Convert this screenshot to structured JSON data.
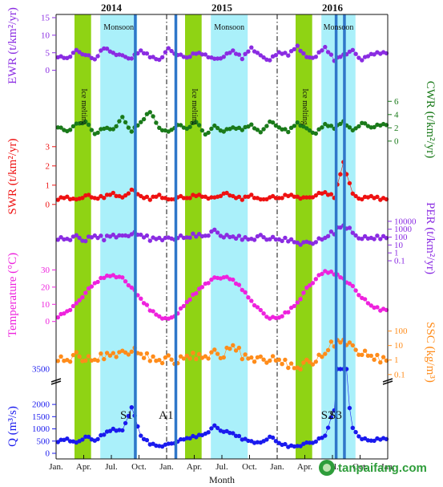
{
  "watermark": "tanpaifang.com",
  "chart_data": {
    "type": "line",
    "xlabel": "Month",
    "x_ticks": [
      "Jan.",
      "Apr.",
      "Jul.",
      "Oct.",
      "Jan.",
      "Apr.",
      "Jul.",
      "Oct.",
      "Jan.",
      "Apr.",
      "Jul.",
      "Oct.",
      "Jan."
    ],
    "year_labels": [
      "2014",
      "2015",
      "2016"
    ],
    "x_range": [
      0,
      36
    ],
    "regions": {
      "ice_melting": {
        "label": "Ice melting",
        "color": "#8fd314",
        "spans": [
          [
            2.0,
            3.8
          ],
          [
            14.0,
            15.8
          ],
          [
            26.0,
            27.8
          ]
        ]
      },
      "monsoon": {
        "label": "Monsoon",
        "color": "#aaf0fa",
        "spans": [
          [
            4.8,
            8.8
          ],
          [
            16.8,
            20.8
          ],
          [
            28.8,
            32.5
          ]
        ]
      }
    },
    "storm_events": [
      {
        "label": "S1",
        "x": 8.6
      },
      {
        "label": "A1",
        "x": 13.0
      },
      {
        "label": "S2",
        "x": 30.4
      },
      {
        "label": "S3",
        "x": 31.3
      }
    ],
    "storm_color": "#2f77c9",
    "panels": [
      {
        "id": "ewr",
        "ylabel": "EWR (t/km²/yr)",
        "axis": "left",
        "color": "#8a2be2",
        "scale": "linear",
        "ylim": [
          -1,
          15
        ],
        "yticks": [
          "0",
          "5",
          "10",
          "15"
        ],
        "values": [
          4.0,
          3.5,
          5.5,
          4.5,
          3.0,
          6.5,
          5.0,
          4.0,
          3.5,
          5.5,
          4.0,
          3.0,
          6.0,
          4.5,
          3.5,
          5.0,
          4.5,
          3.0,
          4.0,
          5.5,
          3.5,
          6.5,
          4.0,
          3.0,
          5.0,
          4.5,
          7.0,
          3.5,
          4.0,
          6.5,
          3.0,
          4.5,
          5.5,
          3.0,
          4.5,
          5.0
        ]
      },
      {
        "id": "cwr",
        "ylabel": "CWR (t/km²/yr)",
        "axis": "right",
        "color": "#1a7a1a",
        "scale": "linear",
        "ylim": [
          -0.5,
          7
        ],
        "yticks": [
          "0",
          "2",
          "4",
          "6"
        ],
        "values": [
          2.2,
          1.5,
          2.5,
          3.0,
          1.0,
          2.0,
          1.8,
          3.5,
          1.5,
          2.8,
          4.5,
          2.0,
          1.3,
          2.5,
          1.8,
          3.0,
          1.0,
          2.2,
          1.5,
          2.0,
          1.8,
          2.5,
          1.2,
          3.0,
          2.0,
          1.5,
          2.8,
          1.8,
          1.2,
          2.5,
          2.0,
          3.0,
          1.5,
          2.8,
          2.0,
          2.5
        ]
      },
      {
        "id": "swr",
        "ylabel": "SWR (t/km²/yr)",
        "axis": "left",
        "color": "#ee1111",
        "scale": "linear",
        "ylim": [
          -0.3,
          3.2
        ],
        "yticks": [
          "0",
          "1",
          "2",
          "3"
        ],
        "values": [
          0.3,
          0.4,
          0.2,
          0.5,
          0.3,
          0.4,
          0.6,
          0.3,
          0.8,
          0.4,
          0.3,
          0.5,
          0.2,
          0.4,
          0.3,
          0.5,
          0.4,
          0.3,
          0.6,
          0.4,
          0.3,
          0.5,
          0.2,
          0.4,
          0.3,
          0.5,
          0.4,
          0.3,
          0.5,
          0.6,
          0.4,
          2.2,
          0.5,
          0.3,
          0.4,
          0.3
        ]
      },
      {
        "id": "per",
        "ylabel": "PER (t/km²/yr)",
        "axis": "right",
        "color": "#8a2be2",
        "scale": "log",
        "ylim": [
          0.05,
          100000
        ],
        "yticks": [
          "0.1",
          "1",
          "10",
          "100",
          "1000",
          "10000"
        ],
        "values": [
          80,
          60,
          100,
          40,
          120,
          70,
          200,
          90,
          300,
          150,
          60,
          80,
          50,
          100,
          70,
          200,
          150,
          500,
          120,
          90,
          80,
          60,
          110,
          70,
          40,
          50,
          20,
          15,
          30,
          60,
          400,
          3000,
          200,
          80,
          60,
          100
        ]
      },
      {
        "id": "temperature",
        "ylabel": "Temperature (°C)",
        "axis": "left",
        "color": "#ee22dd",
        "scale": "linear",
        "ylim": [
          -2,
          33
        ],
        "yticks": [
          "0",
          "10",
          "20",
          "30"
        ],
        "values": [
          3,
          6,
          10,
          17,
          22,
          26,
          27,
          25,
          20,
          13,
          7,
          3,
          1,
          5,
          11,
          17,
          22,
          25,
          26,
          24,
          19,
          12,
          6,
          2,
          2,
          6,
          11,
          19,
          25,
          29,
          28,
          25,
          20,
          14,
          9,
          7
        ]
      },
      {
        "id": "ssc",
        "ylabel": "SSC (kg/m³)",
        "axis": "right",
        "color": "#ff8c1a",
        "scale": "log",
        "ylim": [
          0.04,
          300
        ],
        "yticks": [
          "0.1",
          "1",
          "10",
          "100"
        ],
        "values": [
          1.5,
          1,
          2,
          1.2,
          0.8,
          2,
          3,
          2.5,
          5,
          2,
          1.5,
          1,
          1.2,
          0.8,
          1.5,
          2,
          1.8,
          3,
          2,
          8,
          2,
          1.5,
          1,
          1.2,
          0.8,
          0.5,
          0.3,
          0.6,
          1,
          2,
          15,
          25,
          6,
          3,
          1.5,
          1.2
        ]
      },
      {
        "id": "q",
        "ylabel": "Q (m³/s)",
        "axis": "left",
        "color": "#1a1aee",
        "scale": "linear-broken",
        "ylim": [
          0,
          2200
        ],
        "yticks": [
          "0",
          "500",
          "1000",
          "1500",
          "2000"
        ],
        "break_label": "3500",
        "values": [
          500,
          600,
          400,
          700,
          500,
          800,
          1000,
          900,
          1900,
          700,
          400,
          300,
          350,
          500,
          600,
          700,
          800,
          1100,
          900,
          800,
          600,
          500,
          400,
          700,
          400,
          300,
          300,
          400,
          500,
          700,
          1800,
          3500,
          1000,
          600,
          500,
          600
        ]
      }
    ]
  }
}
